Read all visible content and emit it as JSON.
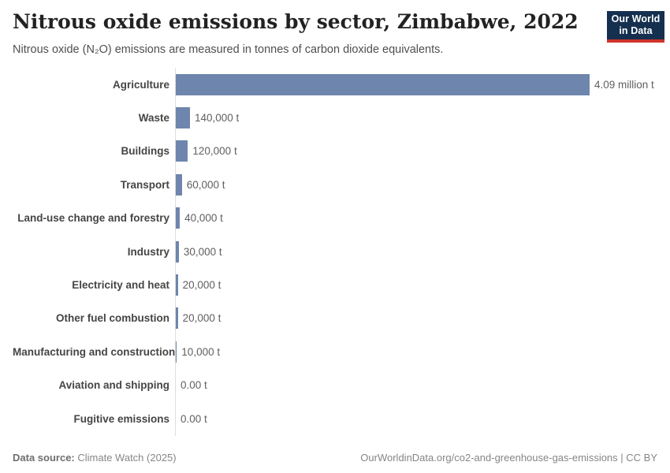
{
  "colors": {
    "bar": "#6e85ad",
    "axis": "#dedede",
    "logo_bg": "#15304f",
    "logo_stripe": "#d0342c"
  },
  "header": {
    "title": "Nitrous oxide emissions by sector, Zimbabwe, 2022",
    "subtitle": "Nitrous oxide (N₂O) emissions are measured in tonnes of carbon dioxide equivalents."
  },
  "logo": {
    "line1": "Our World",
    "line2": "in Data"
  },
  "chart_data": {
    "type": "bar",
    "orientation": "horizontal",
    "title": "Nitrous oxide emissions by sector, Zimbabwe, 2022",
    "unit": "tonnes of carbon dioxide equivalents (t)",
    "xlim": [
      0,
      4090000
    ],
    "grid": false,
    "legend": "none",
    "categories": [
      "Agriculture",
      "Waste",
      "Buildings",
      "Transport",
      "Land-use change and forestry",
      "Industry",
      "Electricity and heat",
      "Other fuel combustion",
      "Manufacturing and construction",
      "Aviation and shipping",
      "Fugitive emissions"
    ],
    "values": [
      4090000,
      140000,
      120000,
      60000,
      40000,
      30000,
      20000,
      20000,
      10000,
      0,
      0
    ],
    "value_labels": [
      "4.09 million t",
      "140,000 t",
      "120,000 t",
      "60,000 t",
      "40,000 t",
      "30,000 t",
      "20,000 t",
      "20,000 t",
      "10,000 t",
      "0.00 t",
      "0.00 t"
    ]
  },
  "footer": {
    "source_label": "Data source:",
    "source_value": "Climate Watch (2025)",
    "credit": "OurWorldinData.org/co2-and-greenhouse-gas-emissions | CC BY"
  }
}
